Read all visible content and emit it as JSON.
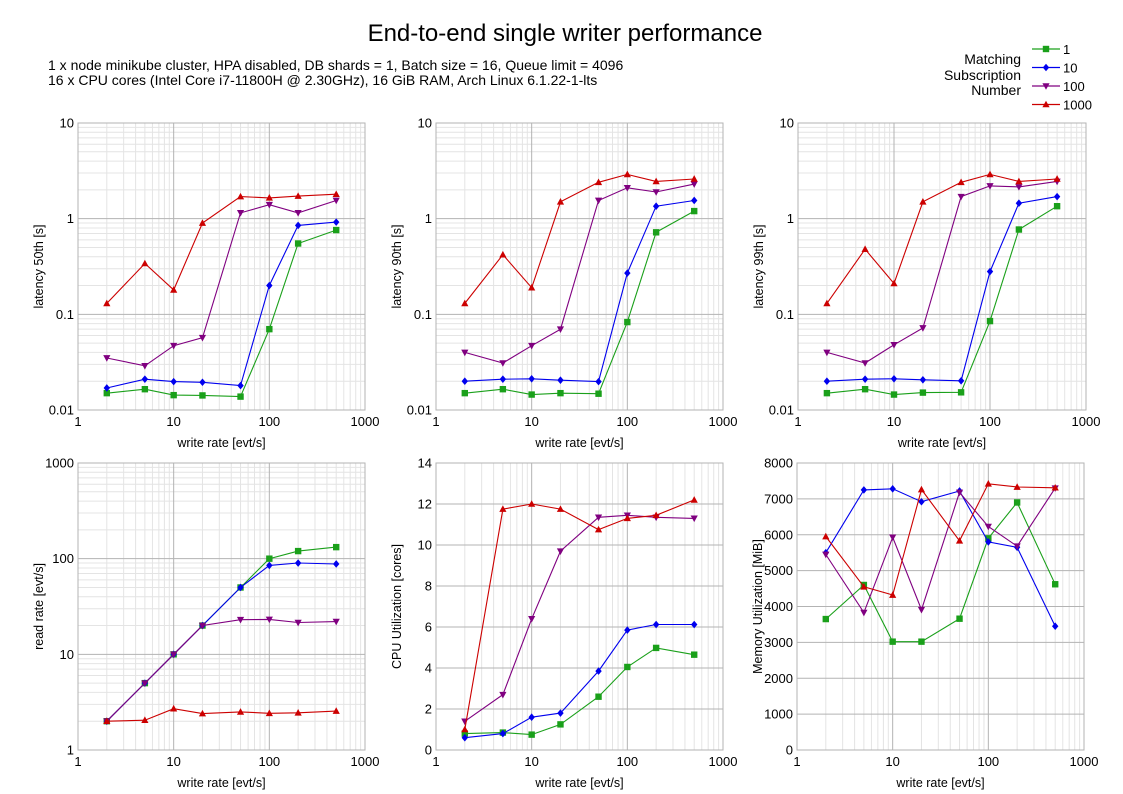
{
  "title": "End-to-end single writer performance",
  "subtitle_lines": [
    "1 x node minikube cluster, HPA disabled, DB shards = 1, Batch size = 16, Queue limit = 4096",
    "16 x CPU cores (Intel Core i7-11800H @ 2.30GHz), 16 GiB RAM, Arch Linux 6.1.22-1-lts"
  ],
  "legend": {
    "title_lines": [
      "Matching",
      "Subscription",
      "Number"
    ],
    "entries": [
      "1",
      "10",
      "100",
      "1000"
    ],
    "placement": "top-right"
  },
  "series_styles": [
    {
      "name": "1",
      "color": "#1aa01a",
      "marker": "square"
    },
    {
      "name": "10",
      "color": "#0000ee",
      "marker": "diamond"
    },
    {
      "name": "100",
      "color": "#800080",
      "marker": "triangle-down"
    },
    {
      "name": "1000",
      "color": "#cc0000",
      "marker": "triangle-up"
    }
  ],
  "chart_data": [
    {
      "type": "line",
      "id": "latency50",
      "xlabel": "write rate [evt/s]",
      "ylabel": "latency 50th [s]",
      "xscale": "log",
      "yscale": "log",
      "xlim": [
        1,
        1000
      ],
      "ylim": [
        0.01,
        10
      ],
      "xticklabels": [
        "1",
        "10",
        "100",
        "1000"
      ],
      "yticklabels": [
        "0.01",
        "0.1",
        "1",
        "10"
      ],
      "x": [
        2,
        5,
        10,
        20,
        50,
        100,
        200,
        500
      ],
      "series": [
        {
          "name": "1",
          "values": [
            0.015,
            0.0165,
            0.0143,
            0.0142,
            0.0138,
            0.07,
            0.55,
            0.76
          ]
        },
        {
          "name": "10",
          "values": [
            0.017,
            0.021,
            0.0198,
            0.0195,
            0.018,
            0.2,
            0.85,
            0.92
          ]
        },
        {
          "name": "100",
          "values": [
            0.035,
            0.029,
            0.047,
            0.057,
            1.15,
            1.4,
            1.15,
            1.55
          ]
        },
        {
          "name": "1000",
          "values": [
            0.13,
            0.34,
            0.18,
            0.9,
            1.7,
            1.65,
            1.72,
            1.8
          ]
        }
      ]
    },
    {
      "type": "line",
      "id": "latency90",
      "xlabel": "write rate [evt/s]",
      "ylabel": "latency 90th [s]",
      "xscale": "log",
      "yscale": "log",
      "xlim": [
        1,
        1000
      ],
      "ylim": [
        0.01,
        10
      ],
      "xticklabels": [
        "1",
        "10",
        "100",
        "1000"
      ],
      "yticklabels": [
        "0.01",
        "0.1",
        "1",
        "10"
      ],
      "x": [
        2,
        5,
        10,
        20,
        50,
        100,
        200,
        500
      ],
      "series": [
        {
          "name": "1",
          "values": [
            0.015,
            0.0165,
            0.0145,
            0.015,
            0.0148,
            0.083,
            0.72,
            1.2
          ]
        },
        {
          "name": "10",
          "values": [
            0.02,
            0.021,
            0.0212,
            0.0205,
            0.0198,
            0.27,
            1.35,
            1.55
          ]
        },
        {
          "name": "100",
          "values": [
            0.04,
            0.031,
            0.047,
            0.07,
            1.55,
            2.1,
            1.9,
            2.3
          ]
        },
        {
          "name": "1000",
          "values": [
            0.13,
            0.42,
            0.19,
            1.5,
            2.4,
            2.9,
            2.45,
            2.6
          ]
        }
      ]
    },
    {
      "type": "line",
      "id": "latency99",
      "xlabel": "write rate [evt/s]",
      "ylabel": "latency 99th [s]",
      "xscale": "log",
      "yscale": "log",
      "xlim": [
        1,
        1000
      ],
      "ylim": [
        0.01,
        10
      ],
      "xticklabels": [
        "1",
        "10",
        "100",
        "1000"
      ],
      "yticklabels": [
        "0.01",
        "0.1",
        "1",
        "10"
      ],
      "x": [
        2,
        5,
        10,
        20,
        50,
        100,
        200,
        500
      ],
      "series": [
        {
          "name": "1",
          "values": [
            0.015,
            0.0165,
            0.0145,
            0.0152,
            0.0153,
            0.085,
            0.77,
            1.35
          ]
        },
        {
          "name": "10",
          "values": [
            0.02,
            0.021,
            0.0212,
            0.0207,
            0.0202,
            0.28,
            1.45,
            1.7
          ]
        },
        {
          "name": "100",
          "values": [
            0.04,
            0.031,
            0.048,
            0.072,
            1.7,
            2.2,
            2.15,
            2.45
          ]
        },
        {
          "name": "1000",
          "values": [
            0.13,
            0.48,
            0.21,
            1.5,
            2.4,
            2.9,
            2.45,
            2.6
          ]
        }
      ]
    },
    {
      "type": "line",
      "id": "readrate",
      "xlabel": "write rate [evt/s]",
      "ylabel": "read rate [evt/s]",
      "xscale": "log",
      "yscale": "log",
      "xlim": [
        1,
        1000
      ],
      "ylim": [
        1,
        1000
      ],
      "xticklabels": [
        "1",
        "10",
        "100",
        "1000"
      ],
      "yticklabels": [
        "1",
        "10",
        "100",
        "1000"
      ],
      "x": [
        2,
        5,
        10,
        20,
        50,
        100,
        200,
        500
      ],
      "series": [
        {
          "name": "1",
          "values": [
            2,
            5,
            10,
            20,
            50,
            100,
            120,
            132
          ]
        },
        {
          "name": "10",
          "values": [
            2,
            5,
            10,
            20,
            50,
            85,
            90,
            88
          ]
        },
        {
          "name": "100",
          "values": [
            2,
            5,
            10,
            20,
            23,
            23.2,
            21.5,
            22
          ]
        },
        {
          "name": "1000",
          "values": [
            2,
            2.05,
            2.7,
            2.4,
            2.5,
            2.42,
            2.45,
            2.55
          ]
        }
      ]
    },
    {
      "type": "line",
      "id": "cpu",
      "xlabel": "write rate [evt/s]",
      "ylabel": "CPU Utilization [cores]",
      "xscale": "log",
      "yscale": "linear",
      "xlim": [
        1,
        1000
      ],
      "ylim": [
        0,
        14
      ],
      "xticklabels": [
        "1",
        "10",
        "100",
        "1000"
      ],
      "yticklabels": [
        "0",
        "2",
        "4",
        "6",
        "8",
        "10",
        "12",
        "14"
      ],
      "x": [
        2,
        5,
        10,
        20,
        50,
        100,
        200,
        500
      ],
      "series": [
        {
          "name": "1",
          "values": [
            0.8,
            0.85,
            0.75,
            1.25,
            2.6,
            4.05,
            4.98,
            4.65
          ]
        },
        {
          "name": "10",
          "values": [
            0.6,
            0.8,
            1.6,
            1.8,
            3.85,
            5.85,
            6.12,
            6.12
          ]
        },
        {
          "name": "100",
          "values": [
            1.4,
            2.7,
            6.4,
            9.7,
            11.35,
            11.45,
            11.35,
            11.3
          ]
        },
        {
          "name": "1000",
          "values": [
            1.0,
            11.75,
            12.0,
            11.75,
            10.75,
            11.3,
            11.45,
            12.2
          ]
        }
      ]
    },
    {
      "type": "line",
      "id": "memory",
      "xlabel": "write rate [evt/s]",
      "ylabel": "Memory Utilization [MiB]",
      "xscale": "log",
      "yscale": "linear",
      "xlim": [
        1,
        1000
      ],
      "ylim": [
        0,
        8000
      ],
      "xticklabels": [
        "1",
        "10",
        "100",
        "1000"
      ],
      "yticklabels": [
        "0",
        "1000",
        "2000",
        "3000",
        "4000",
        "5000",
        "6000",
        "7000",
        "8000"
      ],
      "x": [
        2,
        5,
        10,
        20,
        50,
        100,
        200,
        500
      ],
      "series": [
        {
          "name": "1",
          "values": [
            3650,
            4600,
            3020,
            3020,
            3660,
            5900,
            6900,
            4620
          ]
        },
        {
          "name": "10",
          "values": [
            5500,
            7250,
            7280,
            6920,
            7220,
            5800,
            5650,
            3450
          ]
        },
        {
          "name": "100",
          "values": [
            5450,
            3830,
            5930,
            3910,
            7180,
            6230,
            5680,
            7300
          ]
        },
        {
          "name": "1000",
          "values": [
            5950,
            4550,
            4320,
            7260,
            5830,
            7420,
            7330,
            7310
          ]
        }
      ]
    }
  ]
}
